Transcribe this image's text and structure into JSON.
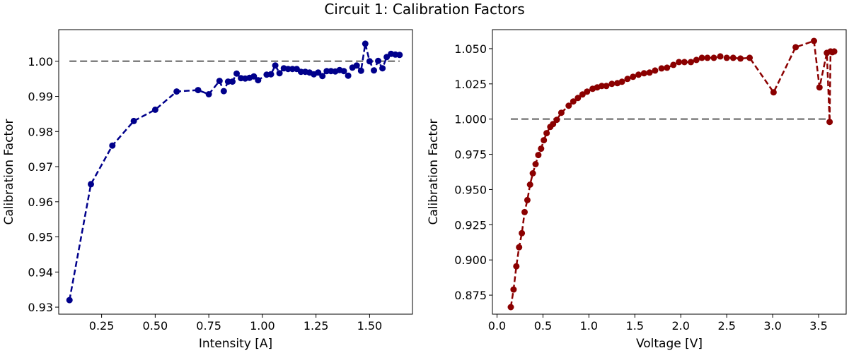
{
  "figure": {
    "title": "Circuit 1: Calibration Factors"
  },
  "chart_data": [
    {
      "type": "line",
      "xlabel": "Intensity [A]",
      "ylabel": "Calibration Factor",
      "xlim": [
        0.05,
        1.7
      ],
      "ylim": [
        0.928,
        1.009
      ],
      "xticks": [
        0.25,
        0.5,
        0.75,
        1.0,
        1.25,
        1.5
      ],
      "xtick_labels": [
        "0.25",
        "0.50",
        "0.75",
        "1.00",
        "1.25",
        "1.50"
      ],
      "yticks": [
        0.93,
        0.94,
        0.95,
        0.96,
        0.97,
        0.98,
        0.99,
        1.0
      ],
      "ytick_labels": [
        "0.93",
        "0.94",
        "0.95",
        "0.96",
        "0.97",
        "0.98",
        "0.99",
        "1.00"
      ],
      "grid": false,
      "reference_line": {
        "y": 1.0,
        "x": [
          0.1,
          1.64
        ],
        "color": "#808080",
        "style": "dashed"
      },
      "series": [
        {
          "color": "#00008b",
          "style": "dashed-markers",
          "points": [
            [
              0.1,
              0.932
            ],
            [
              0.2,
              0.965
            ],
            [
              0.3,
              0.976
            ],
            [
              0.4,
              0.983
            ],
            [
              0.5,
              0.9862
            ],
            [
              0.6,
              0.9914
            ],
            [
              0.7,
              0.9918
            ],
            [
              0.75,
              0.9906
            ],
            [
              0.8,
              0.9944
            ],
            [
              0.82,
              0.9915
            ],
            [
              0.84,
              0.9942
            ],
            [
              0.86,
              0.9942
            ],
            [
              0.88,
              0.9965
            ],
            [
              0.9,
              0.9952
            ],
            [
              0.92,
              0.9951
            ],
            [
              0.94,
              0.9953
            ],
            [
              0.96,
              0.9957
            ],
            [
              0.98,
              0.9946
            ],
            [
              1.02,
              0.9962
            ],
            [
              1.04,
              0.9963
            ],
            [
              1.06,
              0.9988
            ],
            [
              1.08,
              0.9966
            ],
            [
              1.1,
              0.998
            ],
            [
              1.12,
              0.9978
            ],
            [
              1.14,
              0.9978
            ],
            [
              1.16,
              0.9978
            ],
            [
              1.18,
              0.997
            ],
            [
              1.2,
              0.997
            ],
            [
              1.22,
              0.9968
            ],
            [
              1.24,
              0.9963
            ],
            [
              1.26,
              0.9968
            ],
            [
              1.28,
              0.9958
            ],
            [
              1.3,
              0.9972
            ],
            [
              1.32,
              0.9972
            ],
            [
              1.34,
              0.9971
            ],
            [
              1.36,
              0.9975
            ],
            [
              1.38,
              0.9972
            ],
            [
              1.4,
              0.9959
            ],
            [
              1.42,
              0.9982
            ],
            [
              1.44,
              0.9988
            ],
            [
              1.46,
              0.9973
            ],
            [
              1.48,
              1.005
            ],
            [
              1.5,
              1.0
            ],
            [
              1.52,
              0.9974
            ],
            [
              1.54,
              1.0001
            ],
            [
              1.56,
              0.998
            ],
            [
              1.58,
              1.0012
            ],
            [
              1.6,
              1.0021
            ],
            [
              1.62,
              1.0019
            ],
            [
              1.64,
              1.0018
            ]
          ]
        }
      ]
    },
    {
      "type": "line",
      "xlabel": "Voltage [V]",
      "ylabel": "Calibration Factor",
      "xlim": [
        -0.05,
        3.8
      ],
      "ylim": [
        0.8615,
        1.0635
      ],
      "xticks": [
        0.0,
        0.5,
        1.0,
        1.5,
        2.0,
        2.5,
        3.0,
        3.5
      ],
      "xtick_labels": [
        "0.0",
        "0.5",
        "1.0",
        "1.5",
        "2.0",
        "2.5",
        "3.0",
        "3.5"
      ],
      "yticks": [
        0.875,
        0.9,
        0.925,
        0.95,
        0.975,
        1.0,
        1.025,
        1.05
      ],
      "ytick_labels": [
        "0.875",
        "0.900",
        "0.925",
        "0.950",
        "0.975",
        "1.000",
        "1.025",
        "1.050"
      ],
      "grid": false,
      "reference_line": {
        "y": 1.0,
        "x": [
          0.15,
          3.62
        ],
        "color": "#808080",
        "style": "dashed"
      },
      "series": [
        {
          "color": "#8b0000",
          "style": "dashed-markers",
          "points": [
            [
              0.15,
              0.8665
            ],
            [
              0.18,
              0.879
            ],
            [
              0.21,
              0.8955
            ],
            [
              0.24,
              0.909
            ],
            [
              0.27,
              0.919
            ],
            [
              0.3,
              0.934
            ],
            [
              0.33,
              0.9425
            ],
            [
              0.36,
              0.9535
            ],
            [
              0.39,
              0.9615
            ],
            [
              0.42,
              0.968
            ],
            [
              0.45,
              0.9745
            ],
            [
              0.48,
              0.979
            ],
            [
              0.51,
              0.985
            ],
            [
              0.54,
              0.99
            ],
            [
              0.58,
              0.9945
            ],
            [
              0.61,
              0.9965
            ],
            [
              0.65,
              0.9995
            ],
            [
              0.7,
              1.0045
            ],
            [
              0.78,
              1.0095
            ],
            [
              0.83,
              1.0125
            ],
            [
              0.88,
              1.015
            ],
            [
              0.93,
              1.0175
            ],
            [
              0.98,
              1.0195
            ],
            [
              1.04,
              1.0215
            ],
            [
              1.09,
              1.0225
            ],
            [
              1.14,
              1.0235
            ],
            [
              1.19,
              1.0235
            ],
            [
              1.25,
              1.025
            ],
            [
              1.31,
              1.0255
            ],
            [
              1.36,
              1.0265
            ],
            [
              1.42,
              1.0285
            ],
            [
              1.48,
              1.03
            ],
            [
              1.54,
              1.0315
            ],
            [
              1.6,
              1.0325
            ],
            [
              1.66,
              1.033
            ],
            [
              1.72,
              1.0345
            ],
            [
              1.79,
              1.036
            ],
            [
              1.85,
              1.0365
            ],
            [
              1.92,
              1.0385
            ],
            [
              1.98,
              1.0405
            ],
            [
              2.04,
              1.0405
            ],
            [
              2.11,
              1.0405
            ],
            [
              2.17,
              1.042
            ],
            [
              2.23,
              1.0435
            ],
            [
              2.29,
              1.0435
            ],
            [
              2.36,
              1.0435
            ],
            [
              2.43,
              1.0445
            ],
            [
              2.5,
              1.0435
            ],
            [
              2.57,
              1.0435
            ],
            [
              2.65,
              1.043
            ],
            [
              2.75,
              1.0435
            ],
            [
              3.01,
              1.019
            ],
            [
              3.25,
              1.051
            ],
            [
              3.45,
              1.0555
            ],
            [
              3.51,
              1.0225
            ],
            [
              3.59,
              1.047
            ],
            [
              3.62,
              0.998
            ],
            [
              3.63,
              1.048
            ],
            [
              3.65,
              1.0475
            ],
            [
              3.67,
              1.048
            ]
          ]
        }
      ]
    }
  ]
}
